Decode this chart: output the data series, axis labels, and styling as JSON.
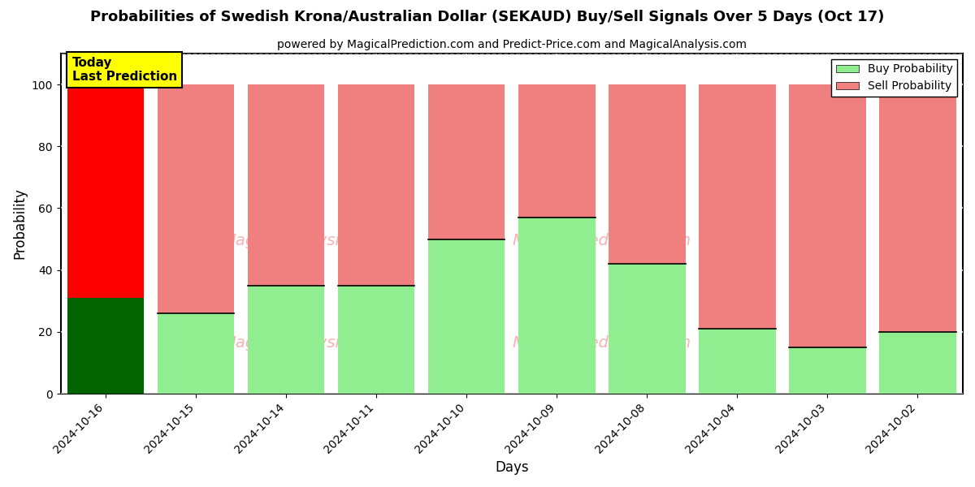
{
  "title": "Probabilities of Swedish Krona/Australian Dollar (SEKAUD) Buy/Sell Signals Over 5 Days (Oct 17)",
  "subtitle": "powered by MagicalPrediction.com and Predict-Price.com and MagicalAnalysis.com",
  "xlabel": "Days",
  "ylabel": "Probability",
  "days": [
    "2024-10-16",
    "2024-10-15",
    "2024-10-14",
    "2024-10-11",
    "2024-10-10",
    "2024-10-09",
    "2024-10-08",
    "2024-10-04",
    "2024-10-03",
    "2024-10-02"
  ],
  "buy_values": [
    31,
    26,
    35,
    35,
    50,
    57,
    42,
    21,
    15,
    20
  ],
  "sell_values": [
    69,
    74,
    65,
    65,
    50,
    43,
    58,
    79,
    85,
    80
  ],
  "today_buy_color": "#006400",
  "today_sell_color": "#FF0000",
  "buy_color": "#90EE90",
  "sell_color": "#F08080",
  "today_label_bg": "#FFFF00",
  "today_label_text": "Today\nLast Prediction",
  "ylim": [
    0,
    110
  ],
  "yticks": [
    0,
    20,
    40,
    60,
    80,
    100
  ],
  "dashed_line_y": 110,
  "watermark_color": "#F08080",
  "legend_buy_label": "Buy Probability",
  "legend_sell_label": "Sell Probability",
  "bg_color": "#ffffff",
  "bar_width": 0.85
}
